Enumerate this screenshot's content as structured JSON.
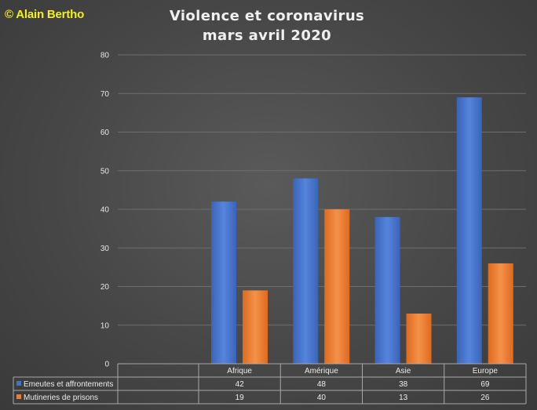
{
  "header": {
    "copyright": "© Alain Bertho",
    "title_line1": "Violence et coronavirus",
    "title_line2": "mars avril 2020"
  },
  "chart_data": {
    "type": "bar",
    "title": "Violence et coronavirus mars avril 2020",
    "categories": [
      "Afrique",
      "Amérique",
      "Asie",
      "Europe"
    ],
    "series": [
      {
        "name": "Emeutes et affrontements",
        "values": [
          42,
          48,
          38,
          69
        ],
        "color": "#4472c4"
      },
      {
        "name": "Mutineries de prisons",
        "values": [
          19,
          40,
          13,
          26
        ],
        "color": "#ed7d31"
      }
    ],
    "ylim": [
      0,
      80
    ],
    "yticks": [
      0,
      10,
      20,
      30,
      40,
      50,
      60,
      70,
      80
    ],
    "grid": true,
    "legend": "data-table"
  }
}
